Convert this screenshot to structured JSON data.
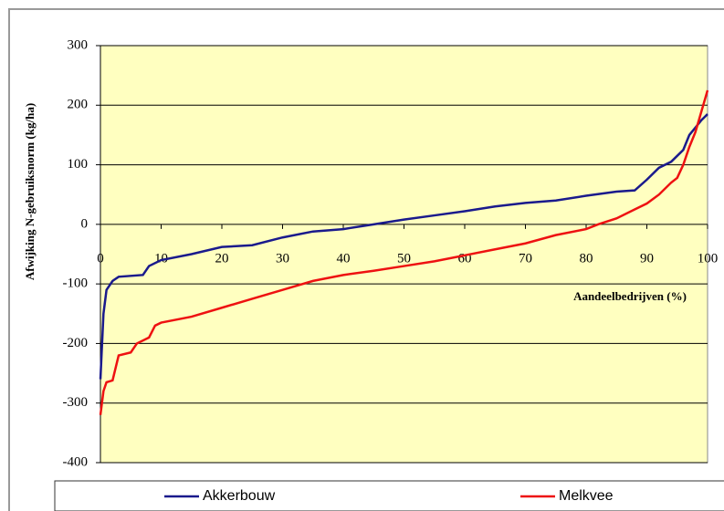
{
  "chart_data": {
    "type": "line",
    "x_label": "Aandeelbedrijven (%)",
    "y_label": "Afwijking N-gebruiksnorm (kg/ha)",
    "xlim": [
      0,
      100
    ],
    "xticks": [
      0,
      10,
      20,
      30,
      40,
      50,
      60,
      70,
      80,
      90,
      100
    ],
    "ylim": [
      -400,
      300
    ],
    "yticks": [
      -400,
      -300,
      -200,
      -100,
      0,
      100,
      200,
      300
    ],
    "grid": true,
    "legend": "bottom",
    "series": [
      {
        "name": "Akkerbouw",
        "color": "#1a1a8c",
        "x": [
          0,
          0.5,
          1,
          2,
          3,
          7,
          8,
          10,
          15,
          20,
          25,
          30,
          35,
          40,
          45,
          50,
          55,
          60,
          65,
          70,
          75,
          80,
          85,
          88,
          90,
          92,
          94,
          96,
          97,
          99,
          100
        ],
        "values": [
          -260,
          -150,
          -110,
          -95,
          -88,
          -85,
          -70,
          -60,
          -50,
          -38,
          -35,
          -22,
          -12,
          -8,
          0,
          8,
          15,
          22,
          30,
          36,
          40,
          48,
          55,
          57,
          75,
          95,
          105,
          125,
          150,
          175,
          185
        ]
      },
      {
        "name": "Melkvee",
        "color": "#ee1111",
        "x": [
          0,
          0.5,
          1,
          2,
          3,
          5,
          6,
          8,
          9,
          10,
          15,
          20,
          25,
          30,
          35,
          40,
          45,
          50,
          55,
          60,
          65,
          70,
          75,
          80,
          82,
          85,
          88,
          90,
          92,
          94,
          95,
          96,
          97,
          98,
          99,
          100
        ],
        "values": [
          -320,
          -280,
          -265,
          -262,
          -220,
          -215,
          -200,
          -190,
          -170,
          -165,
          -155,
          -140,
          -125,
          -110,
          -95,
          -85,
          -78,
          -70,
          -62,
          -52,
          -42,
          -32,
          -18,
          -8,
          0,
          10,
          25,
          35,
          50,
          70,
          78,
          100,
          130,
          155,
          190,
          225
        ]
      }
    ]
  }
}
